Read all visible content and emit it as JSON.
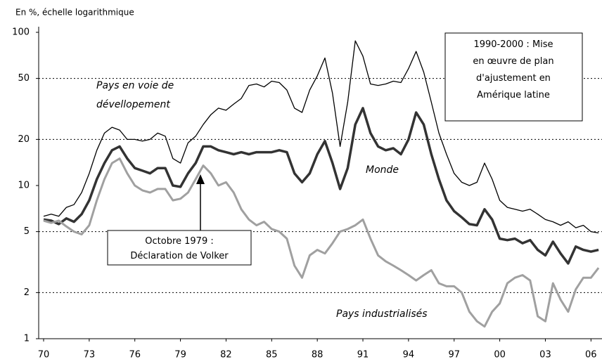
{
  "chart_data": {
    "type": "line",
    "axis_label": "En %, échelle logarithmique",
    "log_scale": true,
    "x": [
      1970,
      1970.5,
      1971,
      1971.5,
      1972,
      1972.5,
      1973,
      1973.5,
      1974,
      1974.5,
      1975,
      1975.5,
      1976,
      1976.5,
      1977,
      1977.5,
      1978,
      1978.5,
      1979,
      1979.5,
      1980,
      1980.5,
      1981,
      1981.5,
      1982,
      1982.5,
      1983,
      1983.5,
      1984,
      1984.5,
      1985,
      1985.5,
      1986,
      1986.5,
      1987,
      1987.5,
      1988,
      1988.5,
      1989,
      1989.5,
      1990,
      1990.5,
      1991,
      1991.5,
      1992,
      1992.5,
      1993,
      1993.5,
      1994,
      1994.5,
      1995,
      1995.5,
      1996,
      1996.5,
      1997,
      1997.5,
      1998,
      1998.5,
      1999,
      1999.5,
      2000,
      2000.5,
      2001,
      2001.5,
      2002,
      2002.5,
      2003,
      2003.5,
      2004,
      2004.5,
      2005,
      2005.5,
      2006,
      2006.5
    ],
    "xlim": [
      1969.7,
      2006.7
    ],
    "xticks": [
      {
        "value": 1970,
        "label": "70"
      },
      {
        "value": 1973,
        "label": "73"
      },
      {
        "value": 1976,
        "label": "76"
      },
      {
        "value": 1979,
        "label": "79"
      },
      {
        "value": 1982,
        "label": "82"
      },
      {
        "value": 1985,
        "label": "85"
      },
      {
        "value": 1988,
        "label": "88"
      },
      {
        "value": 1991,
        "label": "91"
      },
      {
        "value": 1994,
        "label": "94"
      },
      {
        "value": 1997,
        "label": "97"
      },
      {
        "value": 2000,
        "label": "00"
      },
      {
        "value": 2003,
        "label": "03"
      },
      {
        "value": 2006,
        "label": "06"
      }
    ],
    "ylim": [
      1,
      100
    ],
    "yticks": [
      1,
      2,
      5,
      10,
      20,
      50,
      100
    ],
    "grid_values": [
      2,
      5,
      20,
      50
    ],
    "series": [
      {
        "name": "Pays en voie de\ndévellopement",
        "color": "#000000",
        "width": 1.3,
        "values": [
          6.3,
          6.5,
          6.3,
          7.2,
          7.5,
          9,
          12,
          17,
          22,
          24,
          23,
          20,
          20,
          19.5,
          20,
          22,
          21,
          15,
          14,
          19,
          21,
          25,
          29,
          32,
          31,
          34,
          37,
          45,
          46,
          44,
          48,
          47,
          42,
          32,
          30,
          42,
          52,
          68,
          40,
          18,
          35,
          88,
          70,
          46,
          45,
          46,
          48,
          47,
          58,
          75,
          55,
          35,
          22,
          16,
          12,
          10.5,
          10,
          10.5,
          14,
          11,
          8,
          7.2,
          7,
          6.8,
          7,
          6.5,
          6,
          5.8,
          5.5,
          5.8,
          5.3,
          5.5,
          5.0,
          4.9
        ]
      },
      {
        "name": "Monde",
        "color": "#333333",
        "width": 3.5,
        "values": [
          6,
          5.9,
          5.6,
          6.1,
          5.8,
          6.5,
          8,
          11,
          14,
          17,
          18,
          15,
          13,
          12.5,
          12,
          13,
          13,
          10,
          9.8,
          12,
          14,
          18,
          18,
          17,
          16.5,
          16,
          16.5,
          16,
          16.5,
          16.5,
          16.5,
          17,
          16.5,
          12,
          10.5,
          12,
          16,
          19.5,
          14,
          9.5,
          13,
          25,
          32,
          22,
          18,
          17,
          17.5,
          16,
          20,
          30,
          25,
          16,
          11,
          8,
          6.8,
          6.2,
          5.6,
          5.5,
          7,
          6,
          4.5,
          4.4,
          4.5,
          4.2,
          4.4,
          3.8,
          3.5,
          4.3,
          3.6,
          3.1,
          4.0,
          3.8,
          3.7,
          3.8
        ]
      },
      {
        "name": "Pays industrialisés",
        "color": "#a0a0a0",
        "width": 3,
        "values": [
          5.9,
          5.7,
          5.9,
          5.4,
          5,
          4.8,
          5.5,
          8,
          11,
          14,
          15,
          12,
          10,
          9.3,
          9,
          9.5,
          9.5,
          8,
          8.2,
          9,
          11,
          13.5,
          12,
          10,
          10.5,
          9,
          7,
          6,
          5.5,
          5.8,
          5.2,
          5,
          4.5,
          3,
          2.5,
          3.5,
          3.8,
          3.6,
          4.2,
          5,
          5.2,
          5.5,
          6,
          4.5,
          3.5,
          3.2,
          3,
          2.8,
          2.6,
          2.4,
          2.6,
          2.8,
          2.3,
          2.2,
          2.2,
          2,
          1.5,
          1.3,
          1.2,
          1.5,
          1.7,
          2.3,
          2.5,
          2.6,
          2.4,
          1.4,
          1.3,
          2.3,
          1.8,
          1.5,
          2.1,
          2.5,
          2.5,
          2.9
        ]
      }
    ],
    "annotations": [
      {
        "text": "1990-2000 : Mise\nen œuvre de plan\nd'ajustement  en\nAmérique latine"
      },
      {
        "text": "Octobre 1979 :\nDéclaration de Volker"
      }
    ]
  }
}
